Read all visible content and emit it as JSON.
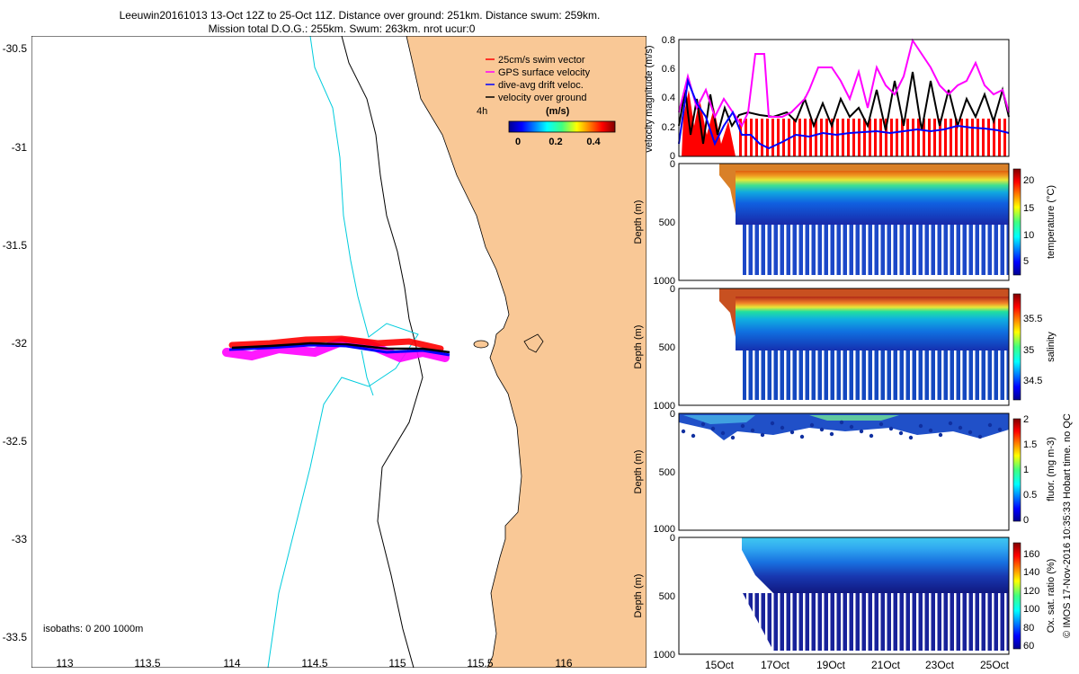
{
  "title": {
    "line1": "Leeuwin20161013 13-Oct 12Z to 25-Oct 11Z. Distance over ground: 251km. Distance swum: 259km.",
    "line2": "Mission total D.O.G.: 255km. Swum: 263km. nrot ucur:0"
  },
  "map": {
    "lat_ticks": [
      "-30.5",
      "-31",
      "-31.5",
      "-32",
      "-32.5",
      "-33",
      "-33.5"
    ],
    "lon_ticks": [
      "113",
      "113.5",
      "114",
      "114.5",
      "115",
      "115.5",
      "116"
    ],
    "isobaths_label": "isobaths: 0   200  1000m",
    "legend": {
      "swim": "25cm/s swim vector",
      "gps": "GPS surface velocity",
      "drift": "dive-avg drift veloc.",
      "over_ground": "velocity over ground",
      "time_label": "4h",
      "colorbar_title": "(m/s)",
      "colorbar_ticks": [
        "0",
        "0.2",
        "0.4"
      ]
    },
    "colors": {
      "land": "#f9c896",
      "swim": "#ff0000",
      "gps": "#ff00ff",
      "drift": "#0000ff",
      "over_ground": "#000000",
      "isobath_200": "#000000",
      "isobath_1000": "#00ccdd"
    }
  },
  "velocity_panel": {
    "ylabel": "velocity magnitude (m/s)",
    "yticks": [
      "0",
      "0.2",
      "0.4",
      "0.6",
      "0.8"
    ]
  },
  "profile_panels": [
    {
      "name": "temperature",
      "ylabel": "Depth (m)",
      "cbar_label": "temperature (°C)",
      "cbar_ticks": [
        "20",
        "15",
        "10",
        "5"
      ],
      "depth_ticks": [
        "0",
        "500",
        "1000"
      ]
    },
    {
      "name": "salinity",
      "ylabel": "Depth (m)",
      "cbar_label": "salinity",
      "cbar_ticks": [
        "35.5",
        "35",
        "34.5"
      ],
      "depth_ticks": [
        "0",
        "500",
        "1000"
      ]
    },
    {
      "name": "fluorescence",
      "ylabel": "Depth (m)",
      "cbar_label": "fluor. (mg m-3)",
      "cbar_ticks": [
        "2",
        "1.5",
        "1",
        "0.5",
        "0"
      ],
      "depth_ticks": [
        "0",
        "500",
        "1000"
      ]
    },
    {
      "name": "oxygen",
      "ylabel": "Depth (m)",
      "cbar_label": "Ox. sat. ratio (%)",
      "cbar_ticks": [
        "160",
        "140",
        "120",
        "100",
        "80",
        "60"
      ],
      "depth_ticks": [
        "0",
        "500",
        "1000"
      ]
    }
  ],
  "date_ticks": [
    "15Oct",
    "17Oct",
    "19Oct",
    "21Oct",
    "23Oct",
    "25Oct"
  ],
  "credit": "© IMOS 17-Nov-2016 10:35:33 Hobart time. no QC"
}
